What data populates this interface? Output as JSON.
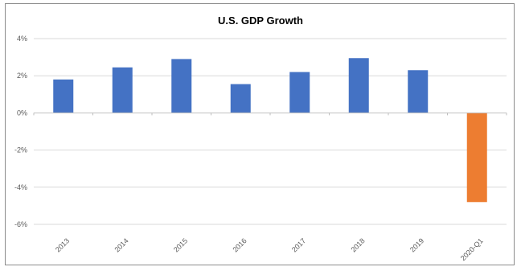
{
  "chart_data": {
    "type": "bar",
    "title": "U.S. GDP Growth",
    "categories": [
      "2013",
      "2014",
      "2015",
      "2016",
      "2017",
      "2018",
      "2019",
      "2020-Q1"
    ],
    "values": [
      1.8,
      2.45,
      2.9,
      1.55,
      2.2,
      2.95,
      2.3,
      -4.8
    ],
    "ylim": [
      -6,
      4
    ],
    "yticks": [
      4,
      2,
      0,
      -2,
      -4,
      -6
    ],
    "ytick_labels": [
      "4%",
      "2%",
      "0%",
      "-2%",
      "-4%",
      "-6%"
    ],
    "grid": true,
    "legend": "none",
    "colors": {
      "positive": "#4472C4",
      "highlight": "#ED7D31",
      "grid": "#d9d9d9",
      "axis": "#bfbfbf"
    },
    "highlight_index": 7
  }
}
